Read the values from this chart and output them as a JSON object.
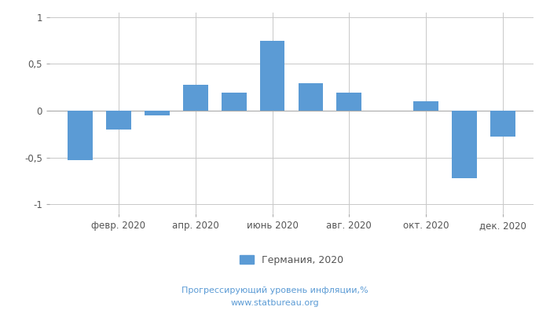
{
  "months": [
    1,
    2,
    3,
    4,
    5,
    6,
    7,
    8,
    9,
    10,
    11,
    12
  ],
  "values": [
    -0.53,
    -0.2,
    -0.05,
    0.28,
    0.19,
    0.75,
    0.29,
    0.19,
    0.0,
    0.1,
    -0.72,
    -0.28
  ],
  "tick_positions": [
    2,
    4,
    6,
    8,
    10,
    12
  ],
  "tick_labels": [
    "февр. 2020",
    "апр. 2020",
    "июнь 2020",
    "авг. 2020",
    "окт. 2020",
    "дек. 2020"
  ],
  "bar_color": "#5b9bd5",
  "ylim": [
    -1.1,
    1.05
  ],
  "yticks": [
    -1,
    -0.5,
    0,
    0.5,
    1
  ],
  "ytick_labels": [
    "-1",
    "-0,5",
    "0",
    "0,5",
    "1"
  ],
  "legend_label": "Германия, 2020",
  "footer_line1": "Прогрессирующий уровень инфляции,%",
  "footer_line2": "www.statbureau.org",
  "background_color": "#ffffff",
  "grid_color": "#c8c8c8",
  "bar_width": 0.65,
  "text_color": "#555555",
  "footer_color": "#5b9bd5"
}
